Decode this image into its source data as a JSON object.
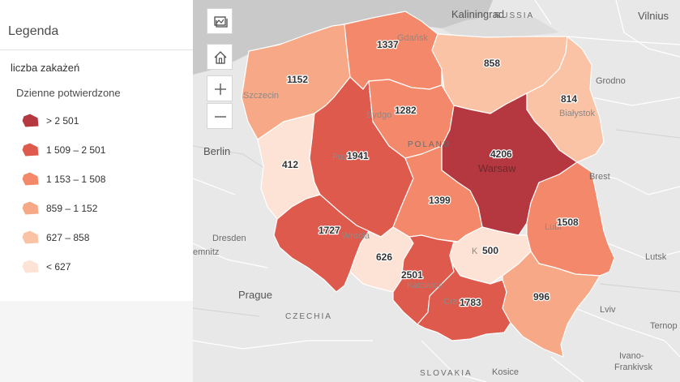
{
  "legend": {
    "title": "Legenda",
    "layer_title": "liczba zakażeń",
    "field_title": "Dzienne potwierdzone",
    "classes": [
      {
        "label": "> 2 501",
        "color": "#b5373f"
      },
      {
        "label": "1 509 – 2 501",
        "color": "#de5a4c"
      },
      {
        "label": "1 153 – 1 508",
        "color": "#f3886a"
      },
      {
        "label": "859 – 1 152",
        "color": "#f7a987"
      },
      {
        "label": "627 – 858",
        "color": "#fac3a6"
      },
      {
        "label": "< 627",
        "color": "#fde2d6"
      }
    ]
  },
  "controls": {
    "basemap": "basemap-gallery-icon",
    "home": "home-icon",
    "zoom_in": "plus-icon",
    "zoom_out": "minus-icon"
  },
  "regions": {
    "zachodniopomorskie": {
      "count": "1152",
      "color": "#f7a987"
    },
    "pomorskie": {
      "count": "1337",
      "color": "#f3886a"
    },
    "warminsko_mazurskie": {
      "count": "858",
      "color": "#fac3a6"
    },
    "podlaskie": {
      "count": "814",
      "color": "#fac3a6"
    },
    "lubuskie": {
      "count": "412",
      "color": "#fde2d6"
    },
    "wielkopolskie": {
      "count": "1941",
      "color": "#de5a4c"
    },
    "kujawsko_pomorskie": {
      "count": "1282",
      "color": "#f3886a"
    },
    "mazowieckie": {
      "count": "4206",
      "color": "#b5373f"
    },
    "lodzkie": {
      "count": "1399",
      "color": "#f3886a"
    },
    "lubelskie": {
      "count": "1508",
      "color": "#f3886a"
    },
    "dolnoslaskie": {
      "count": "1727",
      "color": "#de5a4c"
    },
    "opolskie": {
      "count": "626",
      "color": "#fde2d6"
    },
    "slaskie": {
      "count": "2501",
      "color": "#de5a4c"
    },
    "swietokrzyskie": {
      "count": "500",
      "color": "#fde2d6"
    },
    "malopolskie": {
      "count": "1783",
      "color": "#de5a4c"
    },
    "podkarpackie": {
      "count": "996",
      "color": "#f7a987"
    }
  },
  "basemap": {
    "cities": {
      "kaliningrad": "Kaliningrad",
      "vilnius": "Vilnius",
      "grodno": "Grodno",
      "berlin": "Berlin",
      "dresden": "Dresden",
      "chemnitz": "emnitz",
      "prague": "Prague",
      "lutsk": "Lutsk",
      "lviv": "Lviv",
      "ternopil": "Ternop",
      "ivano": "Ivano-",
      "frankivsk": "Frankivsk",
      "kosice": "Kosice",
      "gdansk": "Gdańsk",
      "szczecin": "Szczecin",
      "bydgoszcz": "Bydgo",
      "bialystok": "Białystok",
      "poznan": "Pozn",
      "warsaw": "Warsaw",
      "brest": "Brest",
      "lublin": "Lubl",
      "wroclaw": "Wrocła",
      "katowice": "Katowice",
      "krakow": "Cra",
      "kielce": "K"
    },
    "countries": {
      "russia": "RUSSIA",
      "poland": "POLAND",
      "czechia": "CZECHIA",
      "slovakia": "SLOVAKIA"
    }
  }
}
